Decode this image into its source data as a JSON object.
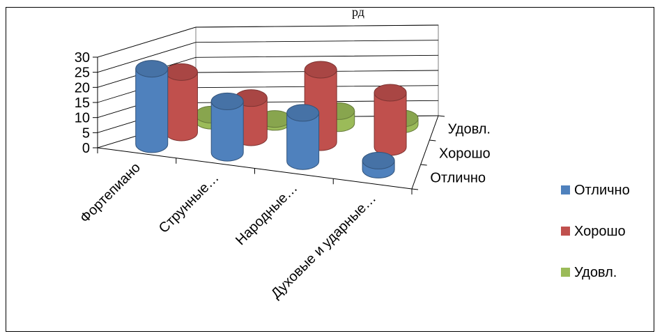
{
  "title_fragment": "рд",
  "chart_data": {
    "type": "bar",
    "subtype": "3d-cylinder",
    "categories": [
      "Фортепиано",
      "Струнные…",
      "Народные…",
      "Духовые и ударные…"
    ],
    "depth_labels": [
      "Отлично",
      "Хорошо",
      "Удовл."
    ],
    "series": [
      {
        "name": "Отлично",
        "color": "#4F81BD",
        "values": [
          25,
          17,
          16,
          3
        ]
      },
      {
        "name": "Хорошо",
        "color": "#C0504D",
        "values": [
          20,
          13,
          24,
          18
        ]
      },
      {
        "name": "Удовл.",
        "color": "#9BBB59",
        "values": [
          2,
          1,
          4,
          2
        ]
      }
    ],
    "ylim": [
      0,
      30
    ],
    "yticks": [
      "0",
      "5",
      "10",
      "15",
      "20",
      "25",
      "30"
    ],
    "grid": true,
    "legend": {
      "position": "right",
      "items": [
        "Отлично",
        "Хорошо",
        "Удовл."
      ]
    }
  }
}
